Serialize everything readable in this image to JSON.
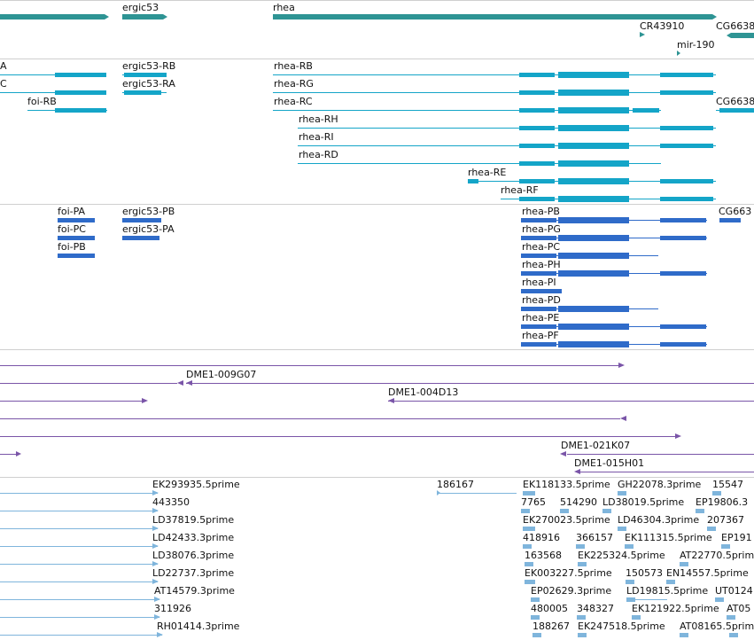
{
  "colors": {
    "gene": "#2e9494",
    "transcript": "#14a5c8",
    "protein": "#2f6bc9",
    "clone": "#7a55a8",
    "est": "#7fb5dc",
    "separator": "#cfcfcf"
  },
  "tracks": {
    "genes": {
      "labels": [
        "ergic53",
        "rhea",
        "CR43910",
        "CG6638",
        "mir-190"
      ]
    },
    "transcripts": {
      "labels": [
        "A",
        "ergic53-RB",
        "rhea-RB",
        "C",
        "ergic53-RA",
        "rhea-RG",
        "foi-RB",
        "rhea-RC",
        "CG6638",
        "rhea-RH",
        "rhea-RI",
        "rhea-RD",
        "rhea-RE",
        "rhea-RF"
      ]
    },
    "proteins": {
      "labels": [
        "foi-PA",
        "ergic53-PB",
        "rhea-PB",
        "CG663",
        "foi-PC",
        "ergic53-PA",
        "rhea-PG",
        "foi-PB",
        "rhea-PC",
        "rhea-PH",
        "rhea-PI",
        "rhea-PD",
        "rhea-PE",
        "rhea-PF"
      ]
    },
    "clones": {
      "labels": [
        "DME1-009G07",
        "DME1-004D13",
        "DME1-021K07",
        "DME1-015H01"
      ]
    },
    "ests": {
      "labels": [
        "EK293935.5prime",
        "186167",
        "EK118133.5prime",
        "GH22078.3prime",
        "15547",
        "443350",
        "7765",
        "514290",
        "LD38019.5prime",
        "EP19806.3",
        "LD37819.5prime",
        "EK270023.5prime",
        "LD46304.3prime",
        "207367",
        "LD42433.3prime",
        "418916",
        "366157",
        "EK111315.5prime",
        "EP191",
        "LD38076.3prime",
        "163568",
        "EK225324.5prime",
        "AT22770.5prime",
        "LD22737.3prime",
        "EK003227.5prime",
        "150573",
        "EN14557.5prime",
        "AT14579.3prime",
        "EP02629.3prime",
        "LD19815.5prime",
        "UT0124",
        "311926",
        "480005",
        "348327",
        "EK121922.5prime",
        "AT05",
        "RH01414.3prime",
        "188267",
        "EK247518.5prime",
        "AT08165.5prime"
      ]
    }
  }
}
